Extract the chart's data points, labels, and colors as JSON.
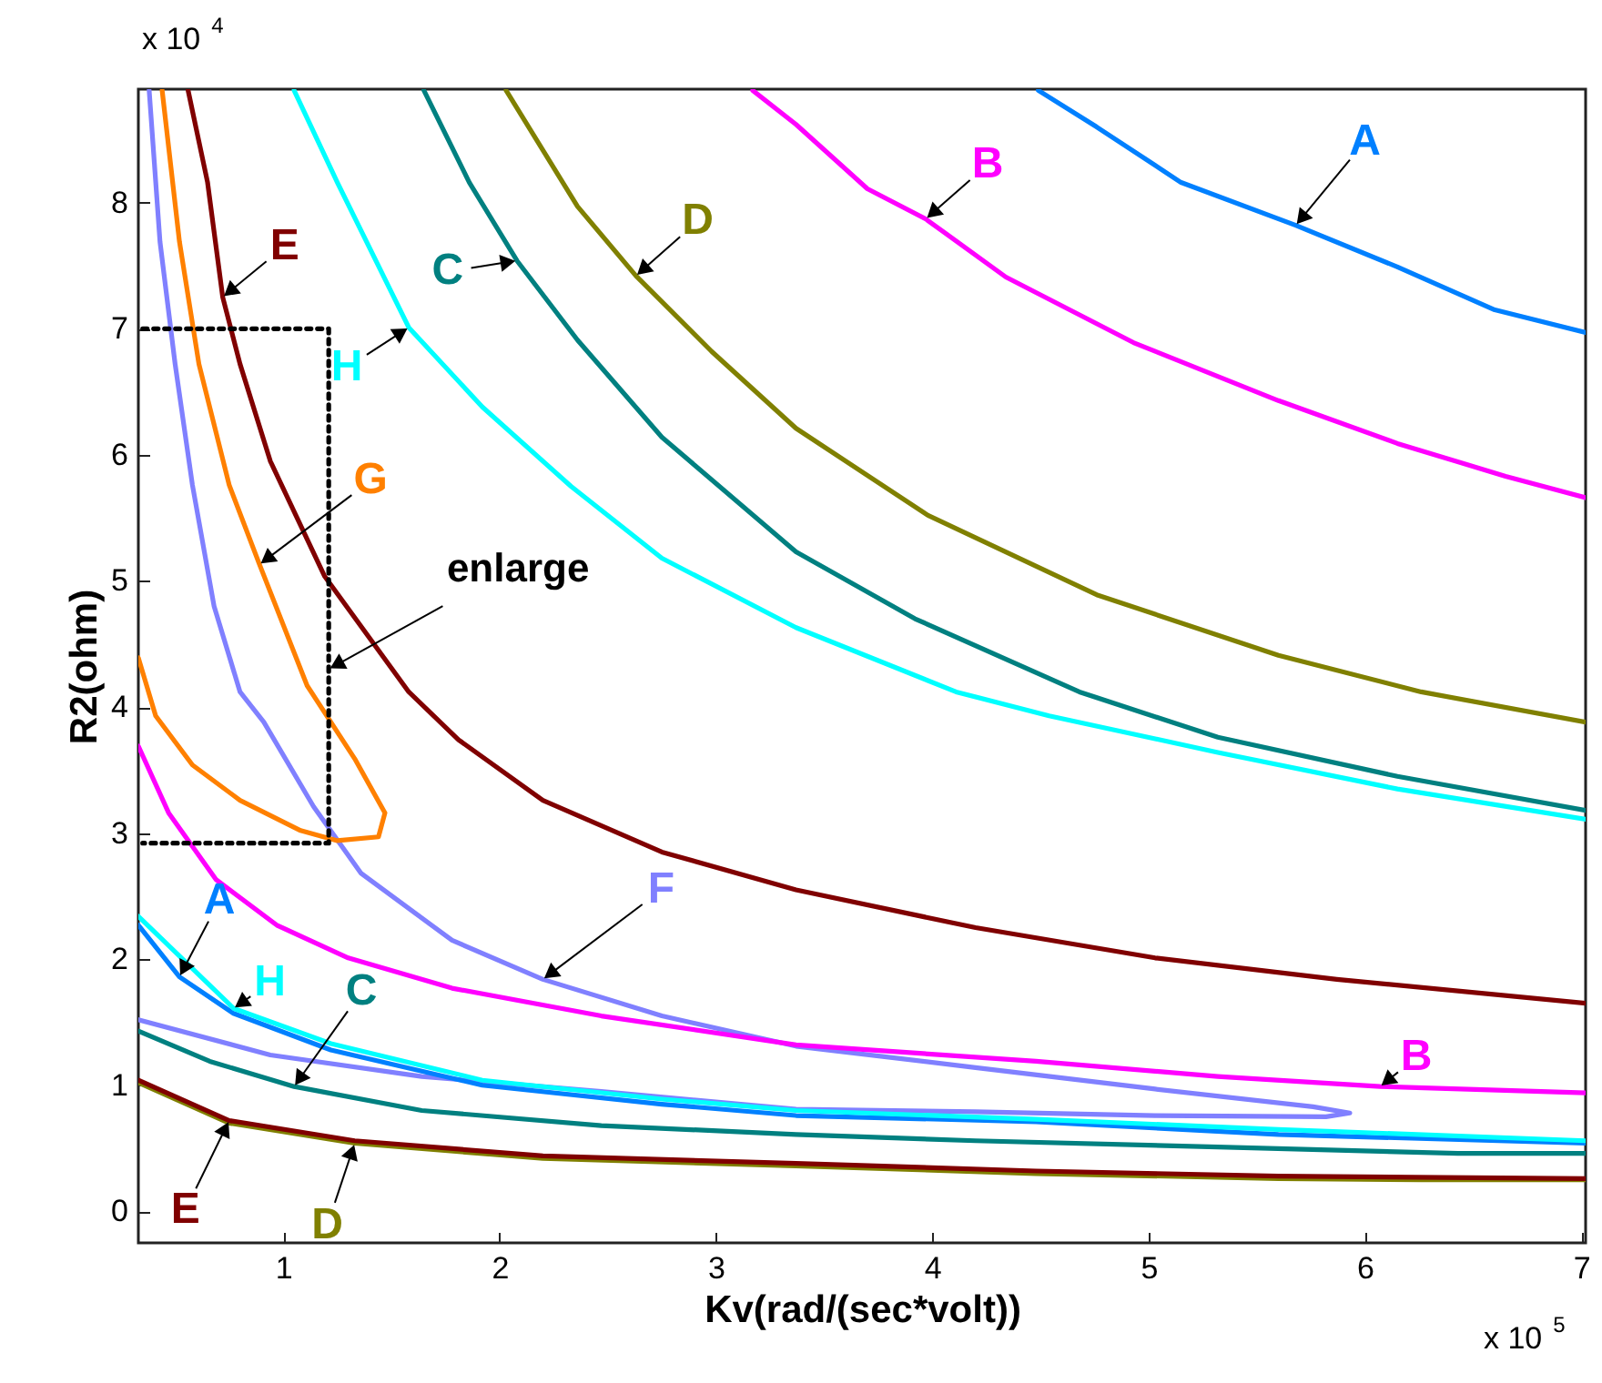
{
  "chart_data": {
    "type": "line",
    "xlabel": "Kv(rad/(sec*volt))",
    "ylabel": "R2(ohm)",
    "xlim": [
      0.33,
      7.02
    ],
    "ylim": [
      -0.25,
      8.9
    ],
    "xticks": [
      1,
      2,
      3,
      4,
      5,
      6,
      7
    ],
    "yticks": [
      0,
      1,
      2,
      3,
      4,
      5,
      6,
      7,
      8
    ],
    "annotations": [
      "x 10$^{4}$",
      "x 10$^{5}$",
      {
        "text": "enlarge",
        "x": 1.21,
        "y": 4.3
      }
    ],
    "series": [
      {
        "name": "A",
        "color": "#0080ff",
        "x": [
          4.49,
          4.76,
          5.15,
          5.68,
          6.15,
          6.6,
          7.02
        ],
        "values": [
          8.89,
          8.6,
          8.16,
          7.82,
          7.49,
          7.15,
          6.97
        ]
      },
      {
        "name": "B",
        "color": "#ff00ff",
        "x": [
          3.17,
          3.37,
          3.7,
          3.97,
          4.34,
          4.93,
          5.6,
          6.15,
          6.65,
          7.02
        ],
        "values": [
          8.89,
          8.62,
          8.11,
          7.87,
          7.41,
          6.89,
          6.43,
          6.09,
          5.83,
          5.66
        ]
      },
      {
        "name": "C",
        "color": "#008080",
        "x": [
          1.65,
          1.86,
          2.08,
          2.36,
          2.75,
          3.37,
          3.92,
          4.68,
          5.32,
          6.15,
          7.02
        ],
        "values": [
          8.89,
          8.16,
          7.54,
          6.91,
          6.14,
          5.23,
          4.7,
          4.12,
          3.76,
          3.45,
          3.18
        ]
      },
      {
        "name": "D",
        "color": "#808000",
        "x": [
          2.03,
          2.36,
          2.63,
          2.98,
          3.37,
          3.98,
          4.76,
          5.6,
          6.26,
          7.02
        ],
        "values": [
          8.89,
          7.97,
          7.42,
          6.82,
          6.21,
          5.52,
          4.89,
          4.41,
          4.12,
          3.88
        ]
      },
      {
        "name": "E",
        "color": "#800000",
        "x": [
          0.56,
          0.65,
          0.72,
          0.8,
          0.94,
          1.19,
          1.58,
          1.81,
          2.2,
          2.75,
          3.37,
          4.2,
          5.03,
          5.87,
          7.02
        ],
        "values": [
          8.89,
          8.16,
          7.25,
          6.72,
          5.95,
          5.04,
          4.12,
          3.74,
          3.26,
          2.85,
          2.55,
          2.25,
          2.01,
          1.84,
          1.65
        ]
      },
      {
        "name": "F",
        "color": "#8080ff",
        "x": [
          0.38,
          0.43,
          0.5,
          0.58,
          0.68,
          0.8,
          0.91,
          1.14,
          1.36,
          1.78,
          2.2,
          2.75,
          3.37,
          4.2,
          5.03,
          5.76,
          5.93,
          5.82,
          5.03,
          4.2,
          3.37,
          2.47,
          1.64,
          0.94,
          0.33
        ],
        "values": [
          8.89,
          7.69,
          6.72,
          5.76,
          4.8,
          4.12,
          3.88,
          3.21,
          2.68,
          2.15,
          1.84,
          1.55,
          1.31,
          1.14,
          0.97,
          0.83,
          0.78,
          0.75,
          0.76,
          0.79,
          0.81,
          0.95,
          1.07,
          1.24,
          1.52
        ]
      },
      {
        "name": "G",
        "color": "#ff8000",
        "x": [
          0.44,
          0.52,
          0.61,
          0.75,
          0.89,
          1.11,
          1.33,
          1.47,
          1.44,
          1.25,
          1.08,
          0.8,
          0.58,
          0.41,
          0.33
        ],
        "values": [
          8.89,
          7.69,
          6.72,
          5.76,
          5.13,
          4.17,
          3.59,
          3.16,
          2.97,
          2.94,
          3.02,
          3.26,
          3.54,
          3.93,
          4.39
        ]
      },
      {
        "name": "H",
        "color": "#00ffff",
        "x": [
          1.05,
          1.25,
          1.58,
          1.92,
          2.33,
          2.75,
          3.37,
          4.11,
          4.54,
          5.32,
          6.15,
          7.02
        ],
        "values": [
          8.89,
          8.16,
          7.01,
          6.38,
          5.75,
          5.18,
          4.63,
          4.12,
          3.93,
          3.64,
          3.35,
          3.11
        ]
      },
      {
        "name": "B",
        "color": "#ff00ff",
        "x": [
          0.33,
          0.47,
          0.69,
          0.97,
          1.3,
          1.78,
          2.47,
          3.37,
          4.48,
          5.32,
          6.07,
          7.02
        ],
        "values": [
          3.69,
          3.16,
          2.63,
          2.27,
          2.01,
          1.77,
          1.55,
          1.32,
          1.19,
          1.07,
          0.99,
          0.94
        ]
      },
      {
        "name": "A",
        "color": "#0080ff",
        "x": [
          0.33,
          0.52,
          0.77,
          1.22,
          1.92,
          2.75,
          3.37,
          4.48,
          5.6,
          7.02
        ],
        "values": [
          2.27,
          1.86,
          1.57,
          1.28,
          1.0,
          0.85,
          0.76,
          0.71,
          0.61,
          0.54
        ]
      },
      {
        "name": "H",
        "color": "#00ffff",
        "x": [
          0.33,
          0.77,
          1.22,
          1.92,
          2.75,
          3.37,
          4.48,
          5.6,
          7.02
        ],
        "values": [
          2.34,
          1.61,
          1.33,
          1.04,
          0.89,
          0.8,
          0.73,
          0.65,
          0.56
        ]
      },
      {
        "name": "C",
        "color": "#008080",
        "x": [
          0.33,
          0.66,
          1.05,
          1.64,
          2.47,
          3.37,
          4.2,
          5.32,
          6.43,
          7.02
        ],
        "values": [
          1.43,
          1.19,
          0.99,
          0.8,
          0.68,
          0.61,
          0.56,
          0.51,
          0.46,
          0.46
        ]
      },
      {
        "name": "D",
        "color": "#808000",
        "x": [
          0.33,
          0.75,
          1.33,
          2.2,
          3.37,
          4.48,
          5.6,
          6.26,
          7.02
        ],
        "values": [
          1.02,
          0.7,
          0.54,
          0.42,
          0.36,
          0.3,
          0.26,
          0.25,
          0.25
        ]
      },
      {
        "name": "E",
        "color": "#800000",
        "x": [
          0.33,
          0.75,
          1.33,
          2.2,
          3.37,
          4.48,
          5.6,
          7.02
        ],
        "values": [
          1.04,
          0.72,
          0.56,
          0.44,
          0.38,
          0.32,
          0.28,
          0.26
        ]
      },
      {
        "type": "line",
        "line_style": "dotted",
        "color": "#000000",
        "x": [
          0.35,
          1.21,
          1.21,
          0.35
        ],
        "values": [
          7.0,
          7.0,
          2.92,
          2.92
        ]
      }
    ]
  }
}
